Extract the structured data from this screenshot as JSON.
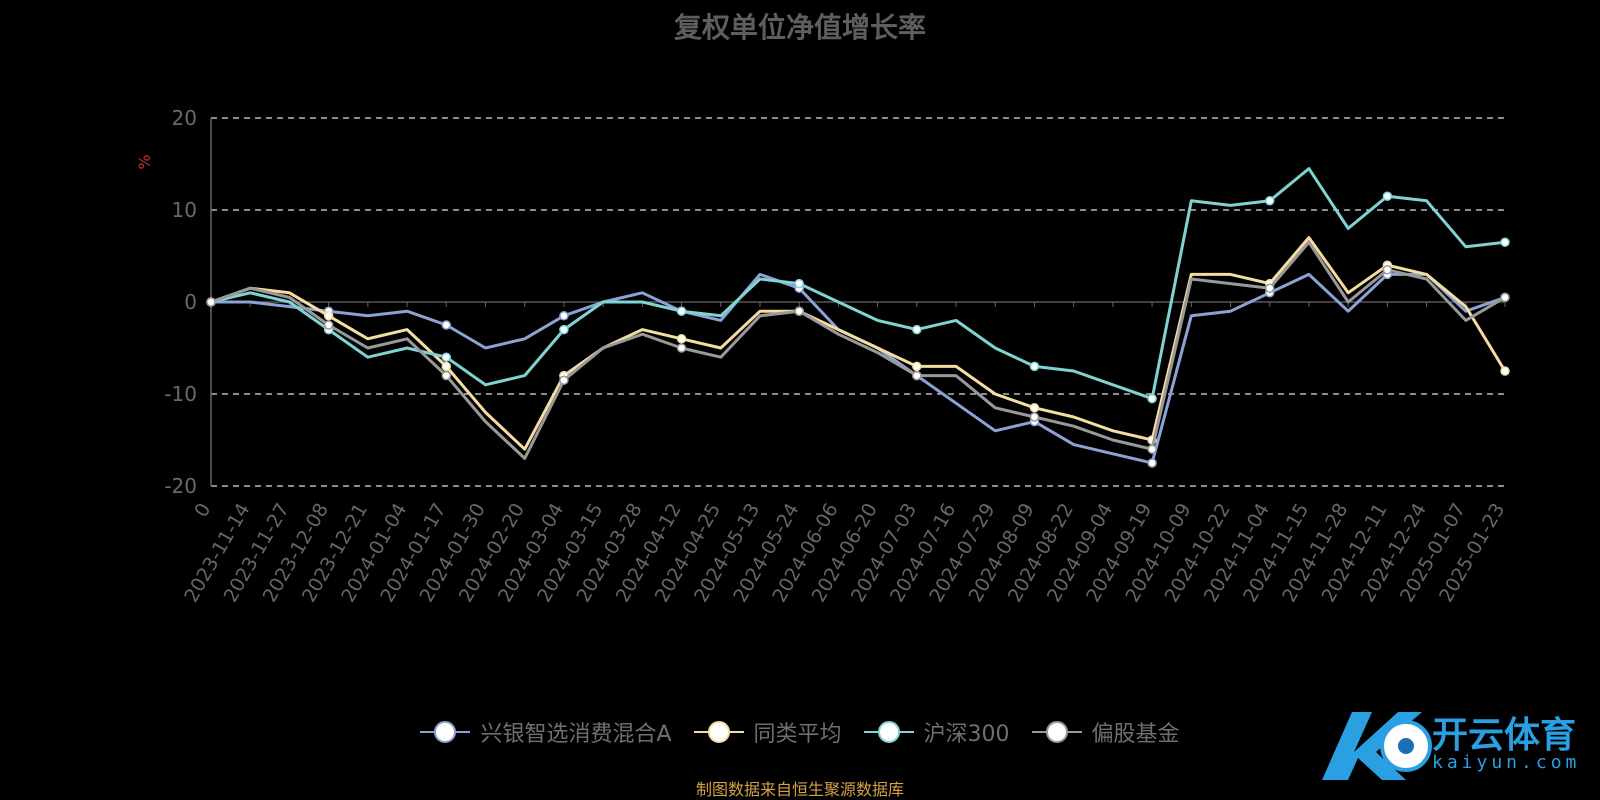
{
  "title": "复权单位净值增长率",
  "source_text": "制图数据来自恒生聚源数据库",
  "logo": {
    "text": "开云体育",
    "sub": "kaiyun.com",
    "icon": "kaiyun-logo-icon"
  },
  "chart_data": {
    "type": "line",
    "title": "复权单位净值增长率",
    "ylabel": "%",
    "xlabel": "",
    "ylim": [
      -20,
      20
    ],
    "yticks": [
      -20,
      -10,
      0,
      10,
      20
    ],
    "grid": true,
    "legend_position": "bottom",
    "categories": [
      "0",
      "2023-11-14",
      "2023-11-27",
      "2023-12-08",
      "2023-12-21",
      "2024-01-04",
      "2024-01-17",
      "2024-01-30",
      "2024-02-20",
      "2024-03-04",
      "2024-03-15",
      "2024-03-28",
      "2024-04-12",
      "2024-04-25",
      "2024-05-13",
      "2024-05-24",
      "2024-06-06",
      "2024-06-20",
      "2024-07-03",
      "2024-07-16",
      "2024-07-29",
      "2024-08-09",
      "2024-08-22",
      "2024-09-04",
      "2024-09-19",
      "2024-10-09",
      "2024-10-22",
      "2024-11-04",
      "2024-11-15",
      "2024-11-28",
      "2024-12-11",
      "2024-12-24",
      "2025-01-07",
      "2025-01-23"
    ],
    "series": [
      {
        "name": "兴银智选消费混合A",
        "color": "#8aa2d6",
        "values": [
          0,
          0,
          -0.5,
          -1,
          -1.5,
          -1,
          -2.5,
          -5,
          -4,
          -1.5,
          0,
          1,
          -1,
          -2,
          3,
          1.5,
          -3,
          -5,
          -8,
          -11,
          -14,
          -13,
          -15.5,
          -16.5,
          -17.5,
          -1.5,
          -1,
          1,
          3,
          -1,
          3,
          3,
          -1,
          0.5
        ]
      },
      {
        "name": "同类平均",
        "color": "#f5dca0",
        "values": [
          0,
          1.5,
          1,
          -1.5,
          -4,
          -3,
          -7,
          -12,
          -16,
          -8,
          -5,
          -3,
          -4,
          -5,
          -1,
          -1,
          -3,
          -5,
          -7,
          -7,
          -10,
          -11.5,
          -12.5,
          -14,
          -15,
          3,
          3,
          2,
          7,
          1,
          4,
          3,
          -0.5,
          -7.5
        ]
      },
      {
        "name": "沪深300",
        "color": "#7fd3d3",
        "values": [
          0,
          1,
          0,
          -3,
          -6,
          -5,
          -6,
          -9,
          -8,
          -3,
          0,
          0,
          -1,
          -1.5,
          2.5,
          2,
          0,
          -2,
          -3,
          -2,
          -5,
          -7,
          -7.5,
          -9,
          -10.5,
          11,
          10.5,
          11,
          14.5,
          8,
          11.5,
          11,
          6,
          6.5
        ]
      },
      {
        "name": "偏股基金",
        "color": "#999999",
        "values": [
          0,
          1.5,
          0.5,
          -2.5,
          -5,
          -4,
          -8,
          -13,
          -17,
          -8.5,
          -5,
          -3.5,
          -5,
          -6,
          -1.5,
          -1,
          -3.5,
          -5.5,
          -8,
          -8,
          -11.5,
          -12.5,
          -13.5,
          -15,
          -16,
          2.5,
          2,
          1.5,
          6.5,
          0,
          3.5,
          2.5,
          -2,
          0.5
        ]
      }
    ]
  }
}
